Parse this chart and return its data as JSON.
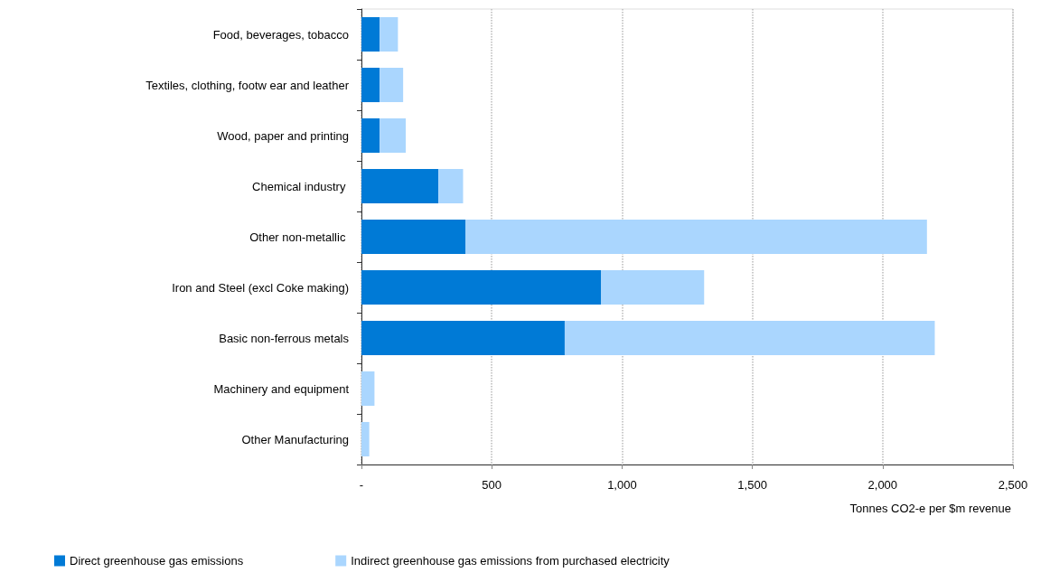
{
  "chart_data": {
    "type": "bar",
    "orientation": "horizontal",
    "stacked": true,
    "xlabel": "Tonnes CO2-e per $m revenue",
    "categories": [
      "Food, beverages, tobacco",
      "Textiles, clothing, footw ear and leather",
      "Wood, paper and printing",
      "Chemical industry ",
      "Other non-metallic ",
      "Iron and Steel (excl Coke making)",
      "Basic non-ferrous metals",
      "Machinery and equipment",
      "Other Manufacturing"
    ],
    "series": [
      {
        "name": "Direct greenhouse gas emissions",
        "color": "#007ad6",
        "values": [
          70,
          70,
          70,
          295,
          400,
          920,
          780,
          0,
          0
        ]
      },
      {
        "name": "Indirect greenhouse gas emissions from purchased electricity",
        "color": "#aad6fe",
        "values": [
          70,
          90,
          100,
          95,
          1770,
          395,
          1420,
          50,
          30
        ]
      }
    ],
    "xlim": [
      0,
      2500
    ],
    "xticks": [
      {
        "value": 0,
        "label": "-"
      },
      500,
      {
        "value": 1000,
        "label": "1,000"
      },
      {
        "value": 1500,
        "label": "1,500"
      },
      {
        "value": 2000,
        "label": "2,000"
      },
      {
        "value": 2500,
        "label": "2,500"
      }
    ],
    "grid": "x",
    "legend": "bottom left"
  }
}
